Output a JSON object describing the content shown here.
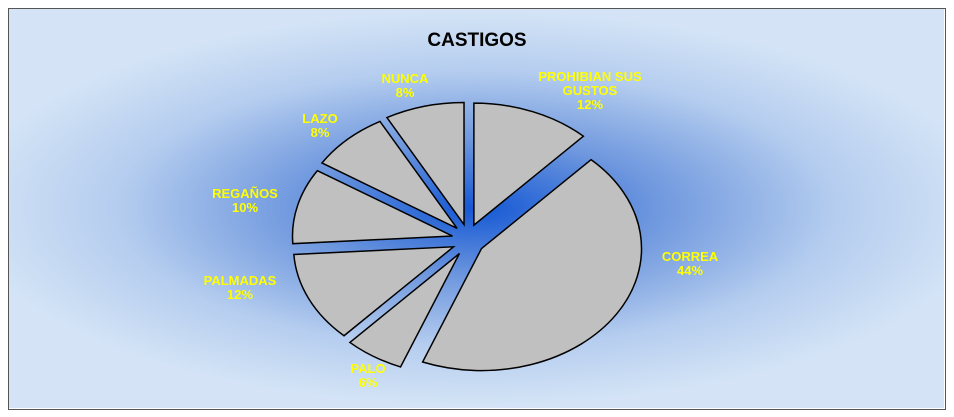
{
  "chart_data": {
    "type": "pie",
    "title": "CASTIGOS",
    "categories": [
      "PROHIBIAN SUS GUSTOS",
      "CORREA",
      "PALO",
      "PALMADAS",
      "REGAÑOS",
      "LAZO",
      "NUNCA"
    ],
    "values": [
      12,
      44,
      6,
      12,
      10,
      8,
      8
    ],
    "value_labels": [
      "12%",
      "44%",
      "6%",
      "12%",
      "10%",
      "8%",
      "8%"
    ],
    "color": "#c0c0c0"
  }
}
